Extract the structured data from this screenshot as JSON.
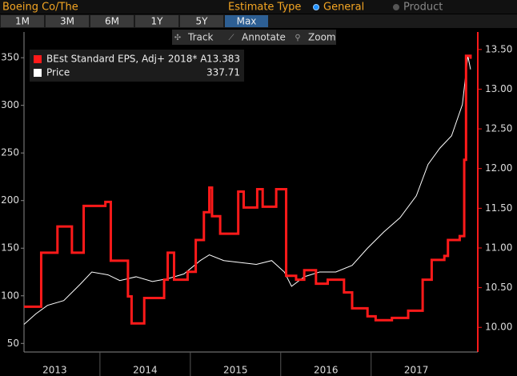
{
  "ui": {
    "title": "Boeing Co/The",
    "estimate_label": "Estimate Type",
    "options": [
      "General",
      "Product"
    ],
    "selected_option": 0,
    "periods": [
      "1M",
      "3M",
      "6M",
      "1Y",
      "5Y",
      "Max"
    ],
    "selected_period": 5,
    "tools": [
      "Track",
      "Annotate",
      "Zoom"
    ]
  },
  "chart_data": {
    "type": "line",
    "xlim": [
      2013.16,
      2018.18
    ],
    "xticks": [
      {
        "value": 2013.5,
        "label": "2013"
      },
      {
        "value": 2014.5,
        "label": "2014"
      },
      {
        "value": 2015.5,
        "label": "2015"
      },
      {
        "value": 2016.5,
        "label": "2016"
      },
      {
        "value": 2017.5,
        "label": "2017"
      }
    ],
    "ylim": [
      41,
      377
    ],
    "yticks": [
      50,
      100,
      150,
      200,
      250,
      300,
      350
    ],
    "y2lim": [
      9.69,
      13.72
    ],
    "y2ticks": [
      {
        "value": 10,
        "label": "10.00"
      },
      {
        "value": 10.5,
        "label": "10.50"
      },
      {
        "value": 11,
        "label": "11.00"
      },
      {
        "value": 11.5,
        "label": "11.50"
      },
      {
        "value": 12,
        "label": "12.00"
      },
      {
        "value": 12.5,
        "label": "12.50"
      },
      {
        "value": 13,
        "label": "13.00"
      },
      {
        "value": 13.5,
        "label": "13.50"
      }
    ],
    "series": [
      {
        "name": "BEst Standard EPS, Adj+ 2018* A",
        "last_value": 13.383,
        "color": "#ff1a1a",
        "axis": "y2",
        "step": true,
        "x": [
          2013.16,
          2013.35,
          2013.53,
          2013.69,
          2013.82,
          2014.06,
          2014.12,
          2014.31,
          2014.35,
          2014.49,
          2014.71,
          2014.75,
          2014.82,
          2014.97,
          2015.06,
          2015.15,
          2015.21,
          2015.24,
          2015.33,
          2015.53,
          2015.59,
          2015.74,
          2015.8,
          2015.95,
          2016.06,
          2016.17,
          2016.26,
          2016.39,
          2016.52,
          2016.7,
          2016.79,
          2016.96,
          2017.05,
          2017.23,
          2017.41,
          2017.57,
          2017.67,
          2017.81,
          2017.85,
          2017.98,
          2018.03,
          2018.05,
          2018.1
        ],
        "values": [
          10.26,
          10.94,
          11.27,
          10.94,
          11.53,
          11.58,
          10.84,
          10.39,
          10.05,
          10.37,
          10.6,
          10.94,
          10.6,
          10.7,
          11.1,
          11.45,
          11.76,
          11.4,
          11.18,
          11.71,
          11.51,
          11.74,
          11.52,
          11.74,
          10.65,
          10.6,
          10.72,
          10.55,
          10.6,
          10.44,
          10.24,
          10.14,
          10.09,
          10.12,
          10.21,
          10.6,
          10.85,
          10.9,
          11.1,
          11.15,
          12.11,
          13.42,
          13.383
        ]
      },
      {
        "name": "Price",
        "last_value": 337.71,
        "color": "#ffffff",
        "x": [
          2013.16,
          2013.29,
          2013.42,
          2013.6,
          2013.78,
          2013.91,
          2014.09,
          2014.22,
          2014.4,
          2014.58,
          2014.75,
          2014.93,
          2015.11,
          2015.21,
          2015.37,
          2015.55,
          2015.73,
          2015.9,
          2016.04,
          2016.12,
          2016.26,
          2016.43,
          2016.61,
          2016.79,
          2016.96,
          2017.14,
          2017.32,
          2017.5,
          2017.63,
          2017.76,
          2017.89,
          2018.01,
          2018.07,
          2018.1
        ],
        "values": [
          70,
          81,
          90,
          95,
          112,
          125,
          122,
          116,
          120,
          115,
          118,
          123,
          137,
          143,
          137,
          135,
          133,
          137,
          125,
          110,
          120,
          125,
          125,
          132,
          150,
          167,
          182,
          205,
          238,
          255,
          268,
          301,
          352,
          337.71
        ]
      }
    ]
  }
}
